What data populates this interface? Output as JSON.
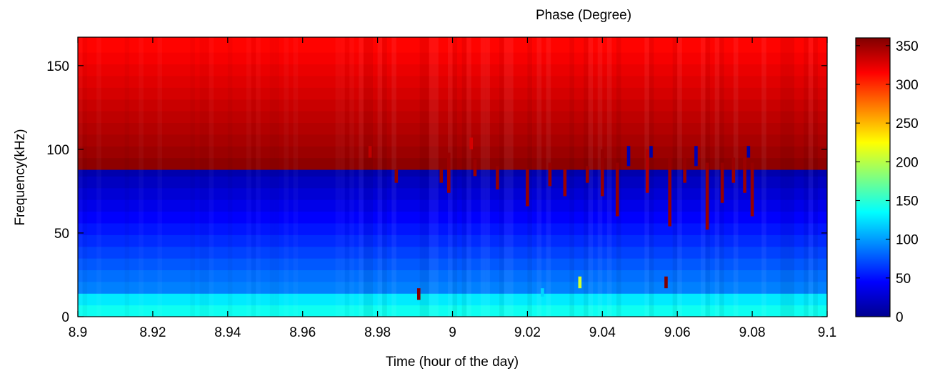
{
  "chart_data": {
    "type": "heatmap",
    "title": "Phase (Degree)",
    "xlabel": "Time (hour of the day)",
    "ylabel": "Frequency(kHz)",
    "xlim": [
      8.9,
      9.1
    ],
    "ylim": [
      0,
      167
    ],
    "x_ticks": [
      "8.9",
      "8.92",
      "8.94",
      "8.96",
      "8.98",
      "9",
      "9.02",
      "9.04",
      "9.06",
      "9.08",
      "9.1"
    ],
    "x_tick_values": [
      8.9,
      8.92,
      8.94,
      8.96,
      8.98,
      9.0,
      9.02,
      9.04,
      9.06,
      9.08,
      9.1
    ],
    "y_ticks": [
      "0",
      "50",
      "100",
      "150"
    ],
    "y_tick_values": [
      0,
      50,
      100,
      150
    ],
    "colormap": "jet",
    "colorbar": {
      "range": [
        0,
        360
      ],
      "ticks": [
        "0",
        "50",
        "100",
        "150",
        "200",
        "250",
        "300",
        "350"
      ],
      "tick_values": [
        0,
        50,
        100,
        150,
        200,
        250,
        300,
        350
      ]
    },
    "frequency_bands": [
      {
        "f_low": 0,
        "f_high": 7,
        "phase": 140
      },
      {
        "f_low": 7,
        "f_high": 14,
        "phase": 128
      },
      {
        "f_low": 14,
        "f_high": 21,
        "phase": 90
      },
      {
        "f_low": 21,
        "f_high": 28,
        "phase": 84
      },
      {
        "f_low": 28,
        "f_high": 35,
        "phase": 76
      },
      {
        "f_low": 35,
        "f_high": 42,
        "phase": 68
      },
      {
        "f_low": 42,
        "f_high": 49,
        "phase": 60
      },
      {
        "f_low": 49,
        "f_high": 56,
        "phase": 52
      },
      {
        "f_low": 56,
        "f_high": 63,
        "phase": 44
      },
      {
        "f_low": 63,
        "f_high": 70,
        "phase": 36
      },
      {
        "f_low": 70,
        "f_high": 77,
        "phase": 28
      },
      {
        "f_low": 77,
        "f_high": 84,
        "phase": 20
      },
      {
        "f_low": 84,
        "f_high": 88,
        "phase": 12
      },
      {
        "f_low": 88,
        "f_high": 95,
        "phase": 355
      },
      {
        "f_low": 95,
        "f_high": 102,
        "phase": 350
      },
      {
        "f_low": 102,
        "f_high": 109,
        "phase": 346
      },
      {
        "f_low": 109,
        "f_high": 116,
        "phase": 342
      },
      {
        "f_low": 116,
        "f_high": 123,
        "phase": 338
      },
      {
        "f_low": 123,
        "f_high": 130,
        "phase": 334
      },
      {
        "f_low": 130,
        "f_high": 137,
        "phase": 330
      },
      {
        "f_low": 137,
        "f_high": 144,
        "phase": 326
      },
      {
        "f_low": 144,
        "f_high": 151,
        "phase": 322
      },
      {
        "f_low": 151,
        "f_high": 158,
        "phase": 318
      },
      {
        "f_low": 158,
        "f_high": 167,
        "phase": 314
      }
    ],
    "anomalies": [
      {
        "time": 8.978,
        "f_low": 95,
        "f_high": 102,
        "phase": 338
      },
      {
        "time": 8.991,
        "f_low": 10,
        "f_high": 17,
        "phase": 358
      },
      {
        "time": 8.985,
        "f_low": 80,
        "f_high": 88,
        "phase": 355
      },
      {
        "time": 8.997,
        "f_low": 80,
        "f_high": 88,
        "phase": 355
      },
      {
        "time": 8.999,
        "f_low": 74,
        "f_high": 98,
        "phase": 350
      },
      {
        "time": 9.005,
        "f_low": 100,
        "f_high": 107,
        "phase": 330
      },
      {
        "time": 9.006,
        "f_low": 84,
        "f_high": 94,
        "phase": 350
      },
      {
        "time": 9.012,
        "f_low": 76,
        "f_high": 90,
        "phase": 352
      },
      {
        "time": 9.02,
        "f_low": 66,
        "f_high": 88,
        "phase": 352
      },
      {
        "time": 9.024,
        "f_low": 12,
        "f_high": 17,
        "phase": 120
      },
      {
        "time": 9.026,
        "f_low": 78,
        "f_high": 92,
        "phase": 352
      },
      {
        "time": 9.03,
        "f_low": 72,
        "f_high": 88,
        "phase": 350
      },
      {
        "time": 9.034,
        "f_low": 17,
        "f_high": 24,
        "phase": 210
      },
      {
        "time": 9.036,
        "f_low": 80,
        "f_high": 90,
        "phase": 352
      },
      {
        "time": 9.04,
        "f_low": 72,
        "f_high": 100,
        "phase": 352
      },
      {
        "time": 9.044,
        "f_low": 60,
        "f_high": 92,
        "phase": 352
      },
      {
        "time": 9.047,
        "f_low": 90,
        "f_high": 102,
        "phase": 15
      },
      {
        "time": 9.052,
        "f_low": 74,
        "f_high": 100,
        "phase": 342
      },
      {
        "time": 9.053,
        "f_low": 95,
        "f_high": 102,
        "phase": 10
      },
      {
        "time": 9.057,
        "f_low": 17,
        "f_high": 24,
        "phase": 360
      },
      {
        "time": 9.058,
        "f_low": 54,
        "f_high": 95,
        "phase": 352
      },
      {
        "time": 9.062,
        "f_low": 80,
        "f_high": 95,
        "phase": 352
      },
      {
        "time": 9.065,
        "f_low": 90,
        "f_high": 102,
        "phase": 15
      },
      {
        "time": 9.068,
        "f_low": 52,
        "f_high": 92,
        "phase": 350
      },
      {
        "time": 9.072,
        "f_low": 68,
        "f_high": 92,
        "phase": 352
      },
      {
        "time": 9.075,
        "f_low": 80,
        "f_high": 95,
        "phase": 350
      },
      {
        "time": 9.078,
        "f_low": 74,
        "f_high": 102,
        "phase": 350
      },
      {
        "time": 9.079,
        "f_low": 95,
        "f_high": 102,
        "phase": 10
      },
      {
        "time": 9.08,
        "f_low": 60,
        "f_high": 92,
        "phase": 352
      }
    ]
  }
}
